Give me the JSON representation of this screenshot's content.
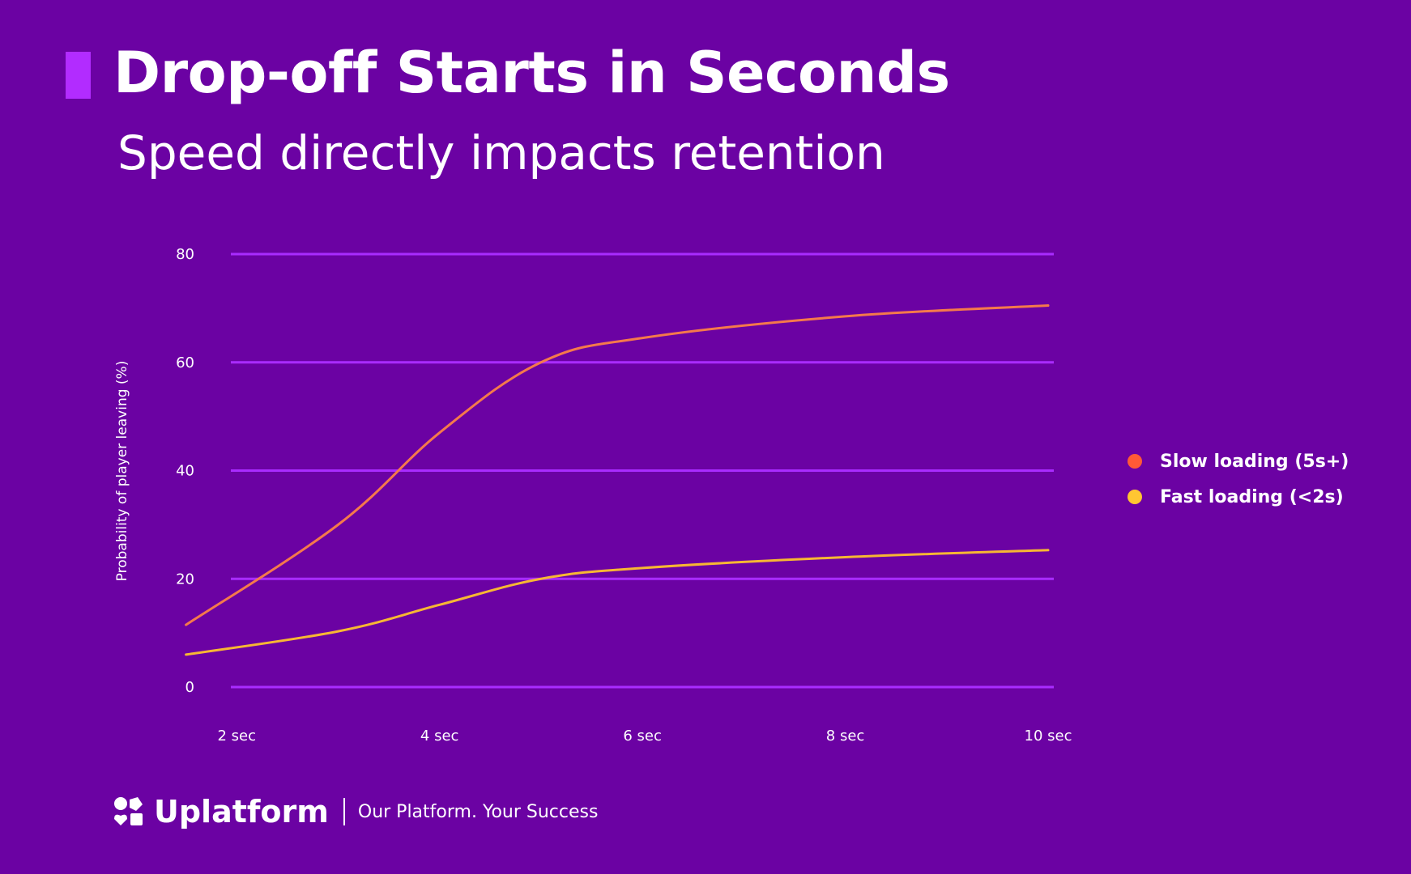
{
  "title": "Drop-off Starts in Seconds",
  "subtitle": "Speed directly impacts retention",
  "footer": {
    "brand": "Uplatform",
    "tagline": "Our Platform. Your Success"
  },
  "colors": {
    "background": "#6b02a3",
    "accent": "#b22cff",
    "gridline": "#a92cff",
    "slow": "#f5794b",
    "fast": "#f7b733",
    "slow_dot": "#ff5a36",
    "fast_dot": "#ffc632"
  },
  "chart_data": {
    "type": "line",
    "title": "",
    "xlabel": "",
    "ylabel": "Probability of player leaving (%)",
    "ylim": [
      0,
      80
    ],
    "yticks": [
      0,
      20,
      40,
      60,
      80
    ],
    "ytick_labels": [
      "0",
      "20",
      "40",
      "60",
      "80"
    ],
    "xlim": [
      1,
      10
    ],
    "xticks": [
      2,
      4,
      6,
      8,
      10
    ],
    "xtick_labels": [
      "2 sec",
      "4 sec",
      "6 sec",
      "8 sec",
      "10 sec"
    ],
    "grid": true,
    "legend_position": "right",
    "series": [
      {
        "name": "Slow loading (5s+)",
        "color": "#f5794b",
        "dot_color": "#ff5a36",
        "x": [
          1.5,
          3,
          4,
          5,
          6,
          8,
          10
        ],
        "y": [
          11.5,
          30,
          47,
          60,
          64.5,
          68.5,
          70.5
        ]
      },
      {
        "name": "Fast loading (<2s)",
        "color": "#f7b733",
        "dot_color": "#ffc632",
        "x": [
          1.5,
          3,
          4,
          5,
          6,
          8,
          10
        ],
        "y": [
          6,
          10.3,
          15.2,
          20,
          22,
          24,
          25.3
        ]
      }
    ]
  }
}
